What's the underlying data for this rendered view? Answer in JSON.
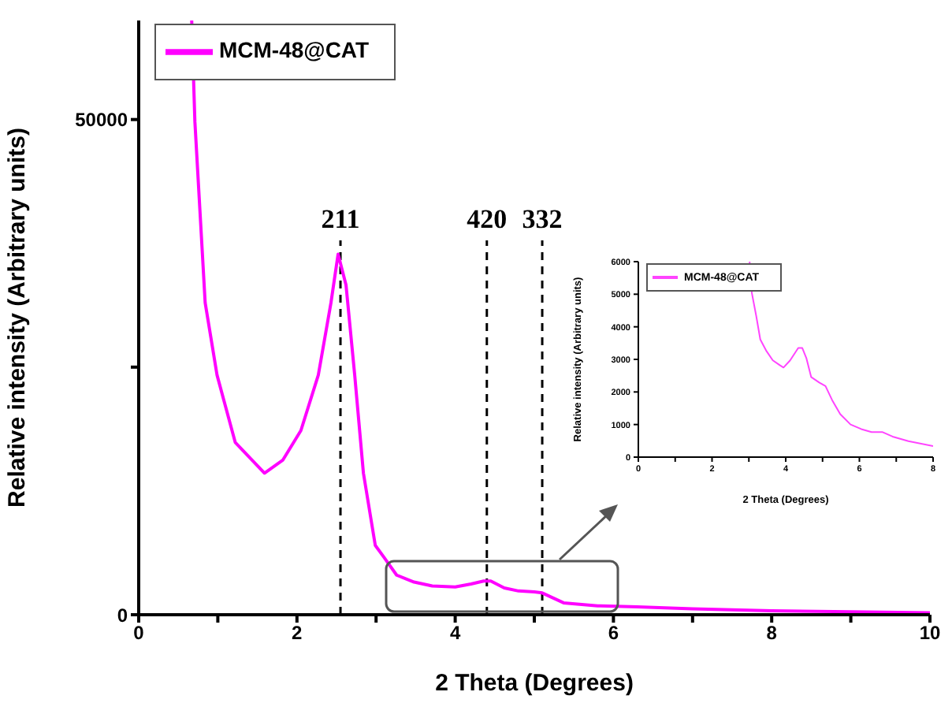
{
  "chart_data": [
    {
      "type": "line",
      "xlabel": "2 Theta (Degrees)",
      "ylabel": "Relative intensity (Arbitrary units)",
      "xlim": [
        0,
        10
      ],
      "ylim": [
        0,
        60000
      ],
      "xticks": [
        0,
        {
          "value": 1,
          "label": null
        },
        2,
        {
          "value": 3,
          "label": null
        },
        4,
        {
          "value": 5,
          "label": null
        },
        6,
        {
          "value": 7,
          "label": null
        },
        8,
        {
          "value": 9,
          "label": null
        },
        10
      ],
      "yticks": [
        0,
        {
          "value": 25000,
          "label": null
        },
        50000
      ],
      "legend": "top left",
      "marker": "none",
      "line_style": "solid",
      "series": [
        {
          "name": "MCM-48@CAT",
          "color": "#ff00ff",
          "x": [
            0.67,
            0.71,
            0.84,
            0.99,
            1.22,
            1.59,
            1.82,
            2.05,
            2.27,
            2.43,
            2.52,
            2.62,
            2.73,
            2.84,
            2.99,
            3.1,
            3.26,
            3.48,
            3.71,
            4.0,
            4.2,
            4.36,
            4.45,
            4.62,
            4.8,
            5.0,
            5.1,
            5.37,
            5.8,
            6.3,
            7.0,
            8.0,
            9.0,
            10.0
          ],
          "values": [
            60000,
            49800,
            31500,
            24200,
            17400,
            14300,
            15600,
            18600,
            24200,
            31500,
            36400,
            33300,
            24200,
            14300,
            7000,
            5800,
            4000,
            3300,
            2900,
            2800,
            3100,
            3400,
            3400,
            2700,
            2400,
            2300,
            2200,
            1200,
            900,
            800,
            600,
            400,
            300,
            200
          ]
        }
      ],
      "ref_lines": [
        {
          "axis": "x",
          "value": 2.55,
          "color": "#000000",
          "line_style": "dashed"
        },
        {
          "axis": "x",
          "value": 4.4,
          "color": "#000000",
          "line_style": "dashed"
        },
        {
          "axis": "x",
          "value": 5.1,
          "color": "#000000",
          "line_style": "dashed"
        }
      ],
      "annotations": [
        "211",
        "420",
        "332"
      ]
    },
    {
      "type": "line",
      "xlabel": "2 Theta (Degrees)",
      "ylabel": "Relative intensity (Arbitrary units)",
      "xlim": [
        0,
        8
      ],
      "ylim": [
        0,
        6000
      ],
      "xticks": [
        0,
        {
          "value": 1,
          "label": null
        },
        2,
        {
          "value": 3,
          "label": null
        },
        4,
        {
          "value": 5,
          "label": null
        },
        6,
        {
          "value": 7,
          "label": null
        },
        8
      ],
      "yticks": [
        0,
        1000,
        2000,
        3000,
        4000,
        5000,
        6000
      ],
      "legend": "top left",
      "marker": "none",
      "line_style": "solid",
      "series": [
        {
          "name": "MCM-48@CAT",
          "color": "#ff44ff",
          "x": [
            3.02,
            3.08,
            3.2,
            3.31,
            3.48,
            3.65,
            3.84,
            3.94,
            4.12,
            4.34,
            4.45,
            4.56,
            4.69,
            4.91,
            5.08,
            5.26,
            5.48,
            5.76,
            6.05,
            6.33,
            6.62,
            6.9,
            7.33,
            8.0
          ],
          "values": [
            6000,
            5040,
            4330,
            3610,
            3250,
            2970,
            2820,
            2750,
            2970,
            3350,
            3350,
            3040,
            2460,
            2290,
            2180,
            1750,
            1320,
            1000,
            860,
            770,
            770,
            630,
            490,
            340
          ]
        }
      ]
    }
  ]
}
